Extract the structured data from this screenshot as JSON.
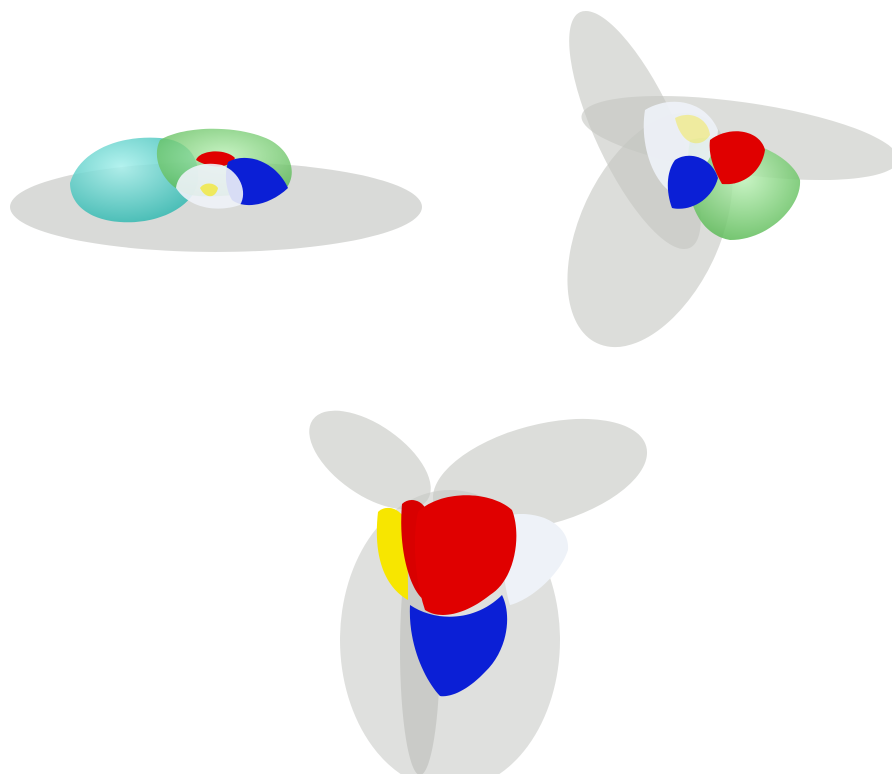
{
  "colors": {
    "background": "#ffffff",
    "plane": "#c9cbc7",
    "red": "#e00000",
    "blue": "#0b1fd6",
    "green": "#6ec86a",
    "cyan": "#4fd2cc",
    "yellow": "#f7e600",
    "white": "#eef2f8"
  },
  "scenes": [
    {
      "view": "side",
      "visible_lobes": [
        "cyan",
        "green",
        "red",
        "blue",
        "white",
        "yellow"
      ]
    },
    {
      "view": "tilted",
      "visible_lobes": [
        "white",
        "yellow",
        "red",
        "blue",
        "green"
      ]
    },
    {
      "view": "top",
      "visible_lobes": [
        "yellow",
        "red",
        "white",
        "blue"
      ]
    }
  ]
}
